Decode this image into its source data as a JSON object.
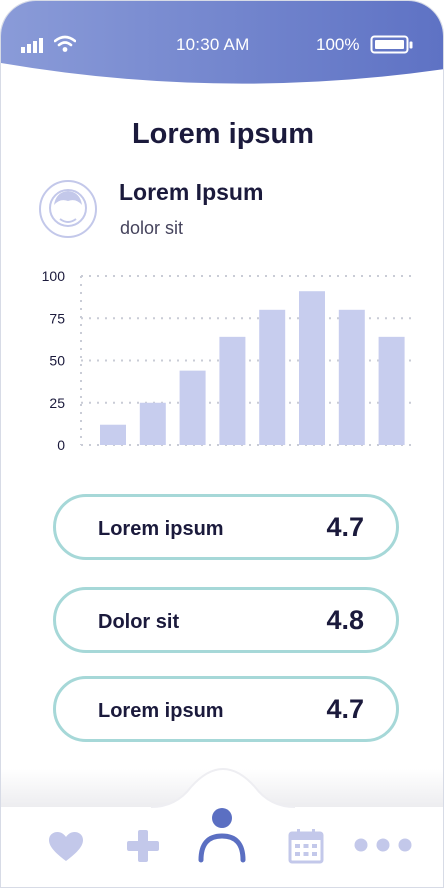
{
  "status_bar": {
    "time": "10:30 AM",
    "battery": "100%"
  },
  "page": {
    "title": "Lorem ipsum"
  },
  "profile": {
    "name": "Lorem Ipsum",
    "subtitle": "dolor sit"
  },
  "chart_data": {
    "type": "bar",
    "categories": [
      "",
      "",
      "",
      "",
      "",
      "",
      "",
      ""
    ],
    "values": [
      12,
      25,
      44,
      64,
      80,
      91,
      80,
      64
    ],
    "ylim": [
      0,
      100
    ],
    "yticks": [
      "0",
      "25",
      "50",
      "75",
      "100"
    ],
    "grid": true,
    "bar_color": "#c7cdee"
  },
  "stats": [
    {
      "label": "Lorem ipsum",
      "value": "4.7"
    },
    {
      "label": "Dolor sit",
      "value": "4.8"
    },
    {
      "label": "Lorem ipsum",
      "value": "4.7"
    }
  ],
  "tabbar": {
    "items": [
      "heart-icon",
      "plus-icon",
      "user-icon",
      "calendar-icon",
      "more-icon"
    ],
    "active": "user-icon"
  },
  "colors": {
    "header_start": "#8a9bd8",
    "header_end": "#5e72c4",
    "accent": "#5b6fc2",
    "icon_inactive": "#c3c8ea",
    "card_border": "#a6d8d8",
    "text_dark": "#1b1a3c"
  }
}
